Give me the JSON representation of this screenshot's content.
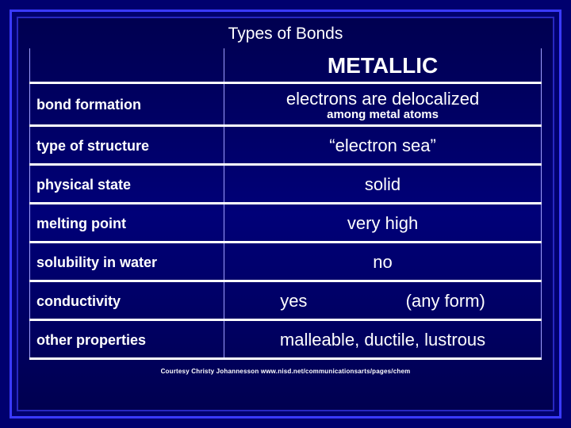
{
  "title": "Types of Bonds",
  "header_right": "METALLIC",
  "rows": [
    {
      "label": "bond formation",
      "value_main": "electrons are delocalized",
      "value_sub": "among metal atoms"
    },
    {
      "label": "type of structure",
      "value_main": "“electron sea”"
    },
    {
      "label": "physical state",
      "value_main": "solid"
    },
    {
      "label": "melting point",
      "value_main": "very high"
    },
    {
      "label": "solubility in water",
      "value_main": "no"
    },
    {
      "label": "conductivity",
      "value_left": "yes",
      "value_right": "(any form)"
    },
    {
      "label": "other properties",
      "value_main": "malleable, ductile, lustrous"
    }
  ],
  "credit": "Courtesy Christy Johannesson www.nisd.net/communicationsarts/pages/chem",
  "colors": {
    "background": "#00006e",
    "outer_border": "#3a3aff",
    "inner_border": "#2828c0",
    "row_border": "#ffffff",
    "cell_side_border": "#a0a0ff",
    "text": "#ffffff"
  }
}
